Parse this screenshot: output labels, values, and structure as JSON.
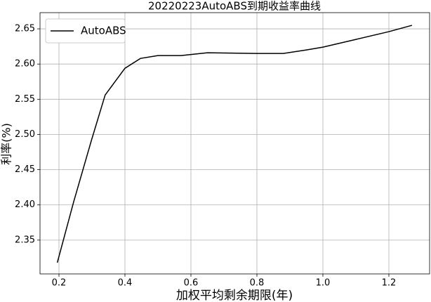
{
  "chart_data": {
    "type": "line",
    "title": "20220223AutoABS到期收益率曲线",
    "xlabel": "加权平均剩余期限(年)",
    "ylabel": "利率(%)",
    "x": [
      0.195,
      0.245,
      0.298,
      0.34,
      0.4,
      0.447,
      0.5,
      0.57,
      0.65,
      0.8,
      0.88,
      0.95,
      1.0,
      1.1,
      1.2,
      1.27
    ],
    "series": [
      {
        "name": "AutoABS",
        "color": "#000000",
        "values": [
          2.318,
          2.405,
          2.491,
          2.556,
          2.594,
          2.608,
          2.612,
          2.612,
          2.616,
          2.615,
          2.615,
          2.62,
          2.624,
          2.635,
          2.646,
          2.655
        ]
      }
    ],
    "xlim": [
      0.1426,
      1.3234
    ],
    "ylim": [
      2.302,
      2.673
    ],
    "xticks": [
      0.2,
      0.4,
      0.6,
      0.8,
      {
        "value": 1,
        "label": "1.0"
      },
      1.2
    ],
    "yticks": [
      2.35,
      {
        "value": 2.4,
        "label": "2.40"
      },
      2.45,
      {
        "value": 2.5,
        "label": "2.50"
      },
      2.55,
      {
        "value": 2.6,
        "label": "2.60"
      },
      2.65
    ],
    "grid": true,
    "legend": "upper left"
  }
}
